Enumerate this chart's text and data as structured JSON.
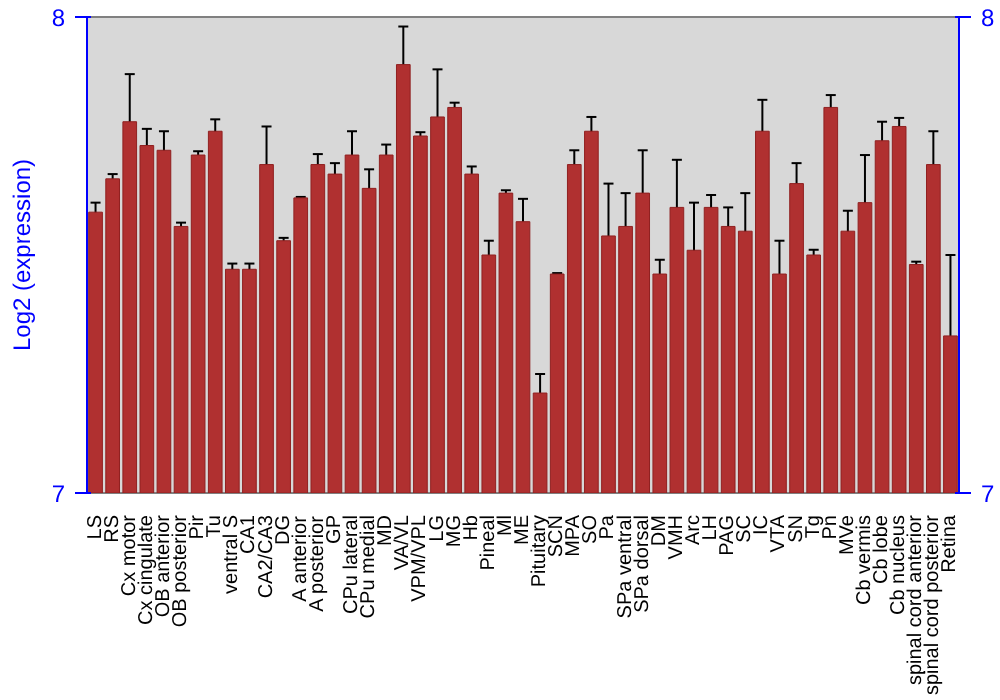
{
  "chart_data": {
    "type": "bar",
    "ylabel": "Log2 (expression)",
    "categories": [
      "LS",
      "RS",
      "Cx motor",
      "Cx cingulate",
      "OB anterior",
      "OB posterior",
      "Pir",
      "Tu",
      "ventral S",
      "CA1",
      "CA2/CA3",
      "DG",
      "A anterior",
      "A posterior",
      "GP",
      "CPu lateral",
      "CPu medial",
      "MD",
      "VA/VL",
      "VPM/VPL",
      "LG",
      "MG",
      "Hb",
      "Pineal",
      "Ml",
      "ME",
      "Pituitary",
      "SCN",
      "MPA",
      "SO",
      "Pa",
      "SPa ventral",
      "SPa dorsal",
      "DM",
      "VMH",
      "Arc",
      "LH",
      "PAG",
      "SC",
      "IC",
      "VTA",
      "SN",
      "Tg",
      "Pn",
      "MVe",
      "Cb vermis",
      "Cb lobe",
      "Cb nucleus",
      "spinal cord anterior",
      "spinal cord posterior",
      "Retina"
    ],
    "values": [
      7.59,
      7.66,
      7.78,
      7.73,
      7.72,
      7.56,
      7.71,
      7.76,
      7.47,
      7.47,
      7.69,
      7.53,
      7.62,
      7.69,
      7.67,
      7.71,
      7.64,
      7.71,
      7.9,
      7.75,
      7.79,
      7.81,
      7.67,
      7.5,
      7.63,
      7.57,
      7.21,
      7.46,
      7.69,
      7.76,
      7.54,
      7.56,
      7.63,
      7.46,
      7.6,
      7.51,
      7.6,
      7.56,
      7.55,
      7.76,
      7.46,
      7.65,
      7.5,
      7.81,
      7.55,
      7.61,
      7.74,
      7.77,
      7.48,
      7.69,
      7.33
    ],
    "errors": [
      0.02,
      0.01,
      0.1,
      0.035,
      0.04,
      0.008,
      0.008,
      0.025,
      0.012,
      0.012,
      0.08,
      0.006,
      0.002,
      0.022,
      0.023,
      0.05,
      0.04,
      0.022,
      0.08,
      0.008,
      0.1,
      0.01,
      0.016,
      0.03,
      0.006,
      0.048,
      0.04,
      0.002,
      0.03,
      0.03,
      0.11,
      0.07,
      0.09,
      0.03,
      0.1,
      0.1,
      0.026,
      0.04,
      0.08,
      0.066,
      0.07,
      0.043,
      0.011,
      0.026,
      0.043,
      0.1,
      0.04,
      0.018,
      0.006,
      0.07,
      0.17
    ],
    "color": "#b03030",
    "ylim": [
      7,
      8
    ],
    "yticks": [
      7,
      8
    ],
    "y2lim": [
      7,
      8
    ],
    "y2ticks": [
      7,
      8
    ],
    "grid": false
  }
}
